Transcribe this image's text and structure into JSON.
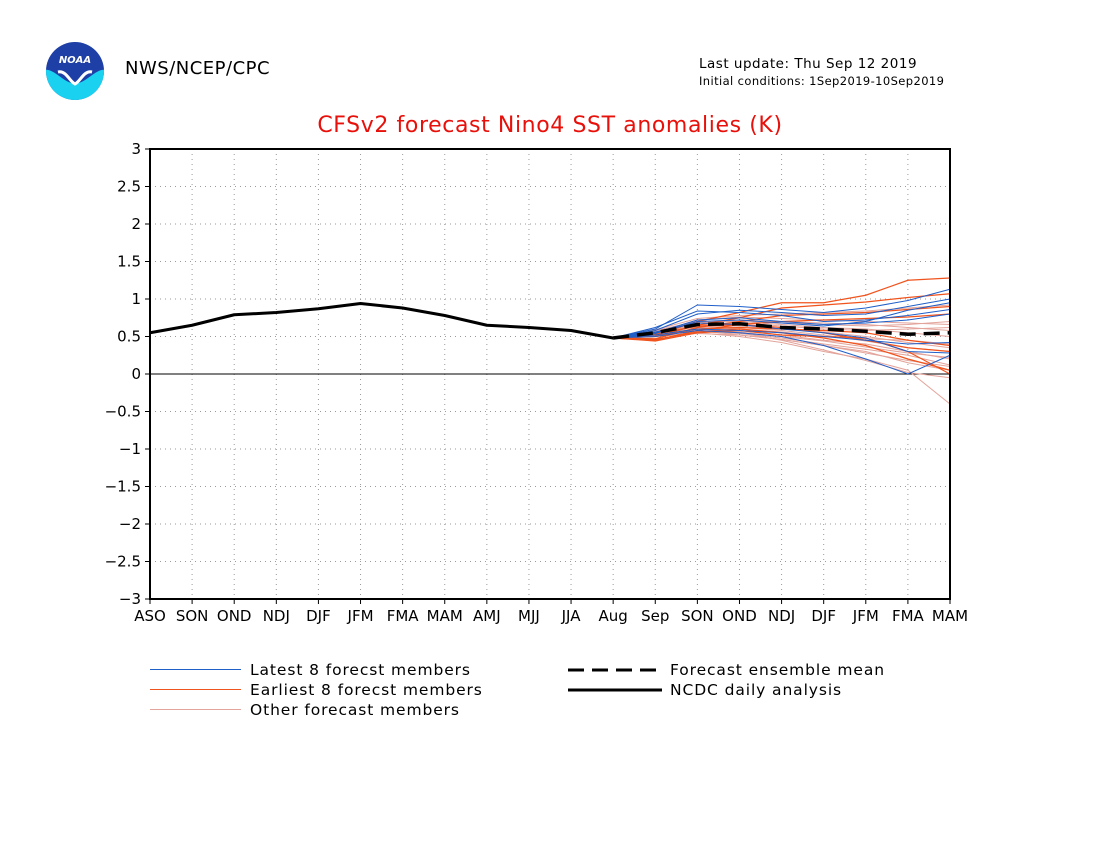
{
  "header": {
    "agency": "NWS/NCEP/CPC",
    "last_update": "Last update: Thu Sep 12 2019",
    "initial_conditions": "Initial conditions: 1Sep2019-10Sep2019",
    "logo_text": "NOAA"
  },
  "colors": {
    "latest": "#1f5fc8",
    "earliest": "#f0541e",
    "other": "#e3a49b",
    "title": "#e8100a",
    "logo_top": "#1d3fa6",
    "logo_bottom": "#1ad1f0"
  },
  "legend": {
    "latest": "Latest 8 forecst members",
    "earliest": "Earliest 8 forecst members",
    "other": "Other forecast members",
    "mean": "Forecast ensemble mean",
    "analysis": "NCDC daily analysis"
  },
  "chart_data": {
    "type": "line",
    "title": "CFSv2 forecast Nino4 SST anomalies (K)",
    "categories": [
      "ASO",
      "SON",
      "OND",
      "NDJ",
      "DJF",
      "JFM",
      "FMA",
      "MAM",
      "AMJ",
      "MJJ",
      "JJA",
      "Aug",
      "Sep",
      "SON",
      "OND",
      "NDJ",
      "DJF",
      "JFM",
      "FMA",
      "MAM"
    ],
    "ylim": [
      -3,
      3
    ],
    "y_ticks": [
      3,
      2.5,
      2,
      1.5,
      1,
      0.5,
      0,
      -0.5,
      -1,
      -1.5,
      -2,
      -2.5,
      -3
    ],
    "grid": true,
    "analysis": {
      "name": "NCDC daily analysis",
      "values": [
        0.55,
        0.65,
        0.79,
        0.82,
        0.87,
        0.94,
        0.88,
        0.78,
        0.65,
        0.62,
        0.58,
        0.48
      ]
    },
    "ensemble_mean": {
      "name": "Forecast ensemble mean",
      "values": [
        0.48,
        0.55,
        0.66,
        0.67,
        0.62,
        0.6,
        0.57,
        0.53,
        0.55
      ]
    },
    "members_latest": [
      [
        0.48,
        0.6,
        0.92,
        0.9,
        0.86,
        0.82,
        0.88,
        0.98,
        1.13
      ],
      [
        0.48,
        0.58,
        0.8,
        0.85,
        0.82,
        0.78,
        0.8,
        0.9,
        1.0
      ],
      [
        0.48,
        0.62,
        0.84,
        0.82,
        0.78,
        0.7,
        0.72,
        0.78,
        0.86
      ],
      [
        0.48,
        0.55,
        0.72,
        0.75,
        0.7,
        0.66,
        0.68,
        0.72,
        0.8
      ],
      [
        0.48,
        0.52,
        0.6,
        0.58,
        0.55,
        0.5,
        0.45,
        0.4,
        0.42
      ],
      [
        0.48,
        0.56,
        0.68,
        0.66,
        0.6,
        0.55,
        0.48,
        0.3,
        0.28
      ],
      [
        0.48,
        0.5,
        0.58,
        0.55,
        0.5,
        0.38,
        0.2,
        0.0,
        0.25
      ],
      [
        0.48,
        0.54,
        0.7,
        0.72,
        0.68,
        0.64,
        0.7,
        0.85,
        0.95
      ]
    ],
    "members_earliest": [
      [
        0.48,
        0.52,
        0.7,
        0.82,
        0.95,
        0.95,
        1.05,
        1.25,
        1.28
      ],
      [
        0.48,
        0.5,
        0.65,
        0.75,
        0.88,
        0.92,
        0.96,
        1.02,
        1.07
      ],
      [
        0.48,
        0.47,
        0.62,
        0.7,
        0.78,
        0.8,
        0.82,
        0.86,
        0.9
      ],
      [
        0.48,
        0.45,
        0.58,
        0.66,
        0.7,
        0.72,
        0.74,
        0.76,
        0.8
      ],
      [
        0.48,
        0.5,
        0.6,
        0.62,
        0.6,
        0.58,
        0.55,
        0.45,
        0.38
      ],
      [
        0.48,
        0.53,
        0.64,
        0.66,
        0.62,
        0.55,
        0.45,
        0.35,
        0.3
      ],
      [
        0.48,
        0.46,
        0.56,
        0.6,
        0.55,
        0.48,
        0.38,
        0.2,
        0.05
      ],
      [
        0.48,
        0.44,
        0.55,
        0.58,
        0.52,
        0.5,
        0.48,
        0.3,
        0.0
      ]
    ],
    "members_other": [
      [
        0.48,
        0.5,
        0.55,
        0.5,
        0.42,
        0.3,
        0.2,
        0.05,
        -0.4
      ],
      [
        0.48,
        0.55,
        0.6,
        0.55,
        0.45,
        0.32,
        0.18,
        0.02,
        -0.05
      ],
      [
        0.48,
        0.52,
        0.58,
        0.52,
        0.46,
        0.38,
        0.3,
        0.15,
        0.05
      ],
      [
        0.48,
        0.57,
        0.62,
        0.58,
        0.52,
        0.45,
        0.4,
        0.3,
        0.2
      ],
      [
        0.48,
        0.54,
        0.66,
        0.64,
        0.6,
        0.56,
        0.5,
        0.42,
        0.35
      ],
      [
        0.48,
        0.58,
        0.7,
        0.7,
        0.66,
        0.62,
        0.6,
        0.55,
        0.5
      ],
      [
        0.48,
        0.53,
        0.64,
        0.62,
        0.58,
        0.52,
        0.44,
        0.35,
        0.3
      ],
      [
        0.48,
        0.56,
        0.68,
        0.72,
        0.7,
        0.68,
        0.66,
        0.62,
        0.58
      ],
      [
        0.48,
        0.55,
        0.72,
        0.76,
        0.74,
        0.72,
        0.7,
        0.68,
        0.66
      ],
      [
        0.48,
        0.51,
        0.6,
        0.56,
        0.5,
        0.44,
        0.36,
        0.28,
        0.22
      ],
      [
        0.48,
        0.59,
        0.74,
        0.78,
        0.8,
        0.82,
        0.84,
        0.88,
        0.92
      ],
      [
        0.48,
        0.52,
        0.57,
        0.54,
        0.48,
        0.4,
        0.33,
        0.25,
        0.12
      ],
      [
        0.48,
        0.56,
        0.63,
        0.6,
        0.56,
        0.5,
        0.47,
        0.45,
        0.4
      ],
      [
        0.48,
        0.54,
        0.66,
        0.68,
        0.64,
        0.6,
        0.58,
        0.6,
        0.62
      ],
      [
        0.48,
        0.5,
        0.54,
        0.52,
        0.46,
        0.38,
        0.28,
        0.18,
        0.1
      ],
      [
        0.48,
        0.57,
        0.69,
        0.7,
        0.68,
        0.66,
        0.64,
        0.66,
        0.7
      ]
    ]
  }
}
